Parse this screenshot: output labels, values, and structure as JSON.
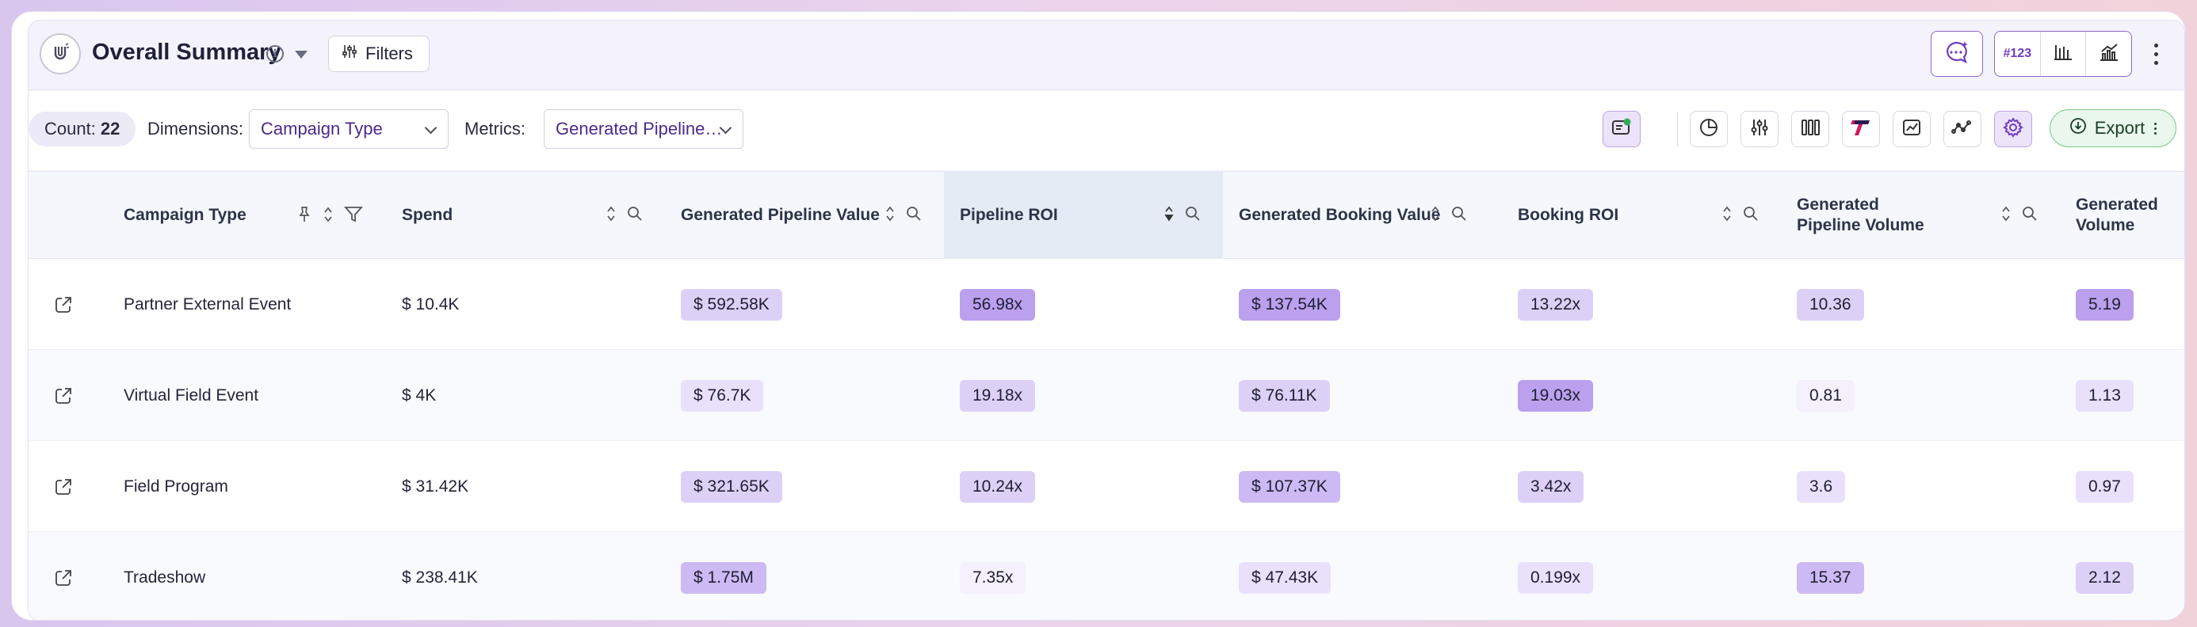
{
  "header": {
    "title": "Overall Summary",
    "filters_label": "Filters",
    "number_view_label": "#123",
    "icons": [
      "magnet-logo-icon",
      "info-icon",
      "caret-down-icon",
      "sliders-icon",
      "ai-chat-icon",
      "table-view-icon",
      "chart-view-icon",
      "kebab-menu-icon"
    ]
  },
  "toolbar": {
    "count_label": "Count:",
    "count_value": "22",
    "dimensions_label": "Dimensions:",
    "dimension_value": "Campaign Type",
    "metrics_label": "Metrics:",
    "metrics_value": "Generated Pipeline…",
    "export_label": "Export",
    "tool_icons": [
      "ai-insight-icon",
      "pie-chart-icon",
      "adjust-icon",
      "columns-icon",
      "brand-icon",
      "image-chart-icon",
      "trend-icon",
      "settings-icon"
    ]
  },
  "table": {
    "columns": [
      "Campaign Type",
      "Spend",
      "Generated Pipeline Value",
      "Pipeline ROI",
      "Generated Booking Value",
      "Booking ROI",
      "Generated Pipeline Volume",
      "Generated Volume"
    ],
    "sorted_column": "Pipeline ROI",
    "rows": [
      {
        "campaign_type": "Partner External Event",
        "spend": "$ 10.4K",
        "pipeline_value": "$ 592.58K",
        "pipeline_roi": "56.98x",
        "booking_value": "$ 137.54K",
        "booking_roi": "13.22x",
        "pipeline_volume": "10.36",
        "volume": "5.19"
      },
      {
        "campaign_type": "Virtual Field Event",
        "spend": "$ 4K",
        "pipeline_value": "$ 76.7K",
        "pipeline_roi": "19.18x",
        "booking_value": "$ 76.11K",
        "booking_roi": "19.03x",
        "pipeline_volume": "0.81",
        "volume": "1.13"
      },
      {
        "campaign_type": "Field Program",
        "spend": "$ 31.42K",
        "pipeline_value": "$ 321.65K",
        "pipeline_roi": "10.24x",
        "booking_value": "$ 107.37K",
        "booking_roi": "3.42x",
        "pipeline_volume": "3.6",
        "volume": "0.97"
      },
      {
        "campaign_type": "Tradeshow",
        "spend": "$ 238.41K",
        "pipeline_value": "$ 1.75M",
        "pipeline_roi": "7.35x",
        "booking_value": "$ 47.43K",
        "booking_roi": "0.199x",
        "pipeline_volume": "15.37",
        "volume": "2.12"
      }
    ]
  },
  "colors": {
    "accent": "#6f3dbd",
    "heat_low": "#f4f0fc",
    "heat_high": "#bba0ee",
    "export_green": "#e9f7ec"
  }
}
